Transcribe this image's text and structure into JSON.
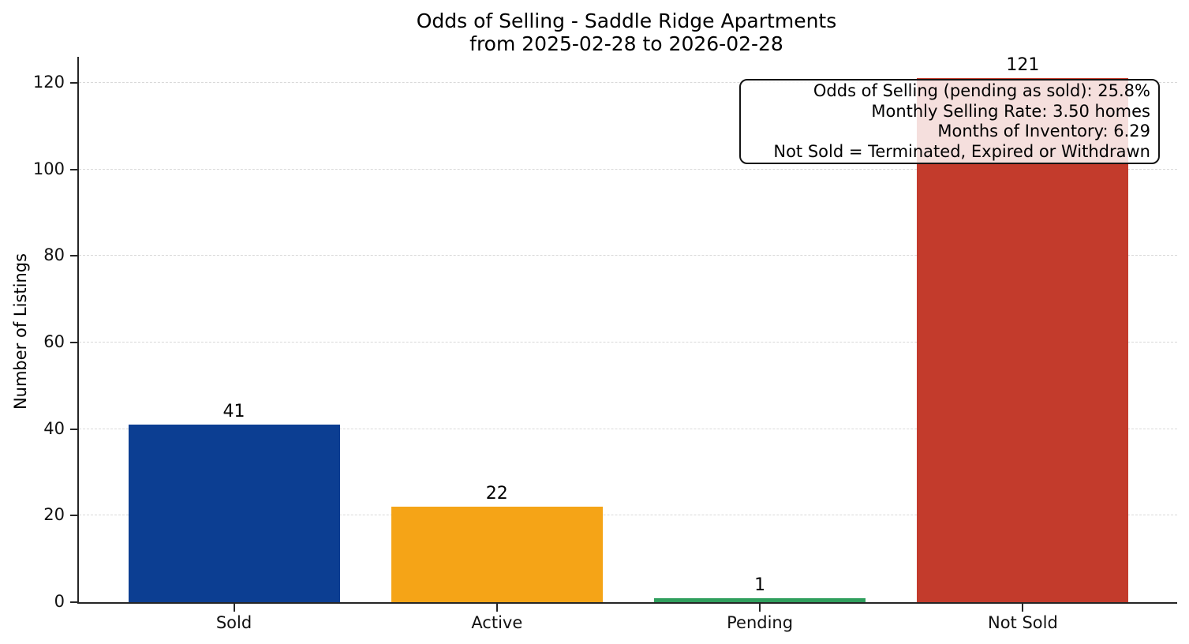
{
  "chart_data": {
    "type": "bar",
    "title_line1": "Odds of Selling - Saddle Ridge Apartments",
    "title_line2": "from 2025-02-28 to 2026-02-28",
    "ylabel": "Number of Listings",
    "categories": [
      "Sold",
      "Active",
      "Pending",
      "Not Sold"
    ],
    "values": [
      41,
      22,
      1,
      121
    ],
    "value_labels": [
      "41",
      "22",
      "1",
      "121"
    ],
    "colors": [
      "#0c3e92",
      "#f5a417",
      "#2f9f5d",
      "#c33b2c"
    ],
    "ylim": [
      0,
      126
    ],
    "yticks": [
      0,
      20,
      40,
      60,
      80,
      100,
      120
    ],
    "grid": "horizontal-dashed",
    "legend": "none",
    "annotation": {
      "lines": [
        "Odds of Selling (pending as sold): 25.8%",
        "Monthly Selling Rate: 3.50 homes",
        "Months of Inventory: 6.29",
        "Not Sold = Terminated, Expired or Withdrawn"
      ]
    }
  }
}
